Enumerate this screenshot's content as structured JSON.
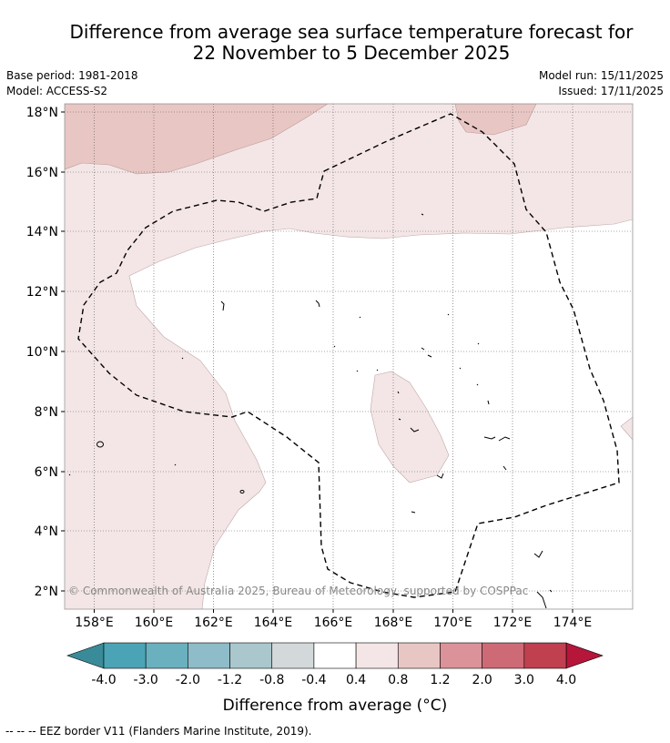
{
  "title": {
    "line1": "Difference from average sea surface temperature forecast for",
    "line2": "22 November to 5 December 2025"
  },
  "info": {
    "base_period": "Base period: 1981-2018",
    "model": "Model: ACCESS-S2",
    "model_run": "Model run: 15/11/2025",
    "issued": "Issued: 17/11/2025"
  },
  "map": {
    "lat_labels": [
      "18°N",
      "16°N",
      "14°N",
      "12°N",
      "10°N",
      "8°N",
      "6°N",
      "4°N",
      "2°N"
    ],
    "lon_labels": [
      "158°E",
      "160°E",
      "162°E",
      "164°E",
      "166°E",
      "168°E",
      "170°E",
      "172°E",
      "174°E"
    ],
    "copyright": "© Commonwealth of Australia 2025, Bureau of Meteorology, supported by COSPPac"
  },
  "colorbar": {
    "tick_labels": [
      "-4.0",
      "-3.0",
      "-2.0",
      "-1.2",
      "-0.8",
      "-0.4",
      "0.4",
      "0.8",
      "1.2",
      "2.0",
      "3.0",
      "4.0"
    ],
    "colors": [
      "#4ba4b5",
      "#6ab0be",
      "#8ebcc8",
      "#a9c7cc",
      "#d3d9db",
      "#ffffff",
      "#f4e6e6",
      "#e8c6c4",
      "#db9299",
      "#cd6a76",
      "#c0404f"
    ],
    "under_color": "#3a8b99",
    "over_color": "#b5163a",
    "label": "Difference from average (°C)"
  },
  "legend": {
    "eez_text": "--  --  -- EEZ border V11 (Flanders Marine Institute, 2019)."
  }
}
